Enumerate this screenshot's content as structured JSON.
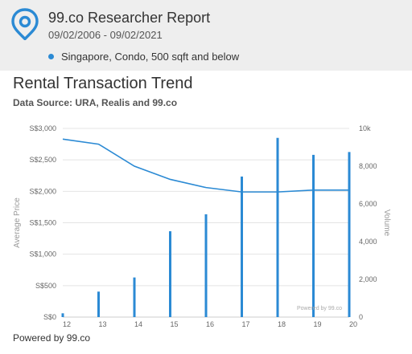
{
  "header": {
    "title": "99.co Researcher Report",
    "date_range": "09/02/2006 - 09/02/2021",
    "filter": "Singapore, Condo, 500 sqft and below"
  },
  "chart_section": {
    "title": "Rental Transaction Trend",
    "source": "Data Source: URA, Realis and 99.co"
  },
  "footer": {
    "powered_by": "Powered by 99.co"
  },
  "colors": {
    "accent": "#2b8ad4",
    "header_bg": "#eeeeee"
  },
  "chart_data": {
    "type": "bar",
    "title": "",
    "xlabel": "",
    "categories": [
      "12",
      "13",
      "14",
      "15",
      "16",
      "17",
      "18",
      "19",
      "20"
    ],
    "y_left": {
      "label": "Average Price",
      "range": [
        0,
        3000
      ],
      "ticks": [
        "S$0",
        "S$500",
        "S$1,000",
        "S$1,500",
        "S$2,000",
        "S$2,500",
        "S$3,000"
      ]
    },
    "y_right": {
      "label": "Volume",
      "range": [
        0,
        10000
      ],
      "ticks": [
        "0",
        "2,000",
        "4,000",
        "6,000",
        "8,000",
        "10k"
      ]
    },
    "series": [
      {
        "type": "line",
        "axis": "left",
        "values": [
          2830,
          2750,
          2400,
          2190,
          2060,
          1990,
          1990,
          2020,
          2020
        ]
      },
      {
        "type": "bar",
        "axis": "right",
        "values": [
          200,
          1350,
          2100,
          4550,
          5450,
          7450,
          9500,
          8600,
          8750
        ]
      }
    ],
    "grid": true,
    "credit": "Powered by 99.co"
  }
}
